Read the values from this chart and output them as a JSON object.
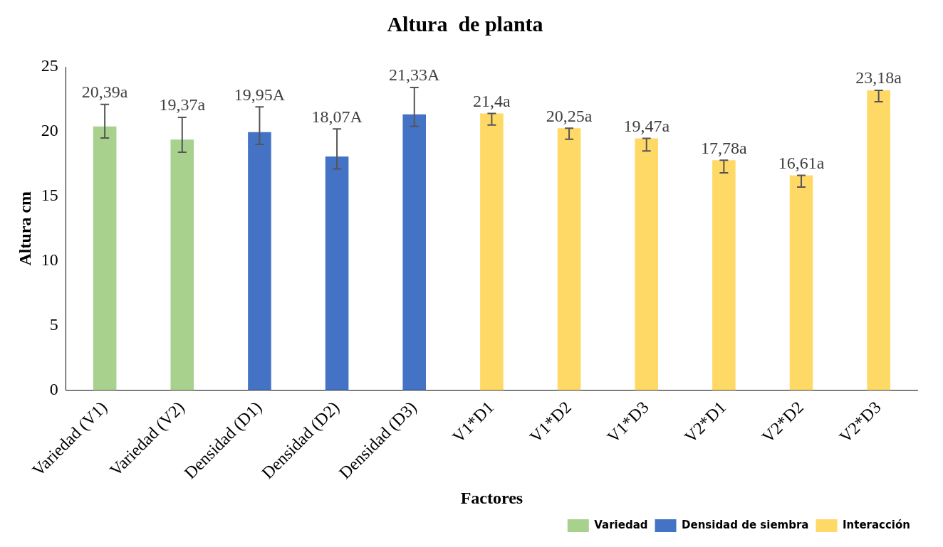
{
  "chart_data": {
    "type": "bar",
    "title": "Altura  de planta",
    "xlabel": "Factores",
    "ylabel": "Altura cm",
    "categories": [
      "Variedad (V1)",
      "Variedad (V2)",
      "Densidad (D1)",
      "Densidad (D2)",
      "Densidad (D3)",
      "V1*D1",
      "V1*D2",
      "V1*D3",
      "V2*D1",
      "V2*D2",
      "V2*D3"
    ],
    "series": [
      {
        "name": "Variedad",
        "color": "#a9d18e",
        "values": [
          20.39,
          19.37,
          null,
          null,
          null,
          null,
          null,
          null,
          null,
          null,
          null
        ],
        "errors": [
          [
            19.5,
            22.1
          ],
          [
            18.4,
            21.1
          ],
          null,
          null,
          null,
          null,
          null,
          null,
          null,
          null,
          null
        ],
        "value_labels": [
          "20,39a",
          "19,37a",
          null,
          null,
          null,
          null,
          null,
          null,
          null,
          null,
          null
        ]
      },
      {
        "name": "Densidad de siembra",
        "color": "#4472c4",
        "values": [
          null,
          null,
          19.95,
          18.07,
          21.33,
          null,
          null,
          null,
          null,
          null,
          null
        ],
        "errors": [
          null,
          null,
          [
            19.0,
            21.9
          ],
          [
            17.1,
            20.2
          ],
          [
            20.4,
            23.4
          ],
          null,
          null,
          null,
          null,
          null,
          null
        ],
        "value_labels": [
          null,
          null,
          "19,95A",
          "18,07A",
          "21,33A",
          null,
          null,
          null,
          null,
          null,
          null
        ]
      },
      {
        "name": "Interacción",
        "color": "#ffd966",
        "values": [
          null,
          null,
          null,
          null,
          null,
          21.4,
          20.25,
          19.47,
          17.78,
          16.61,
          23.18
        ],
        "errors": [
          null,
          null,
          null,
          null,
          null,
          [
            20.5,
            21.4
          ],
          [
            19.4,
            20.25
          ],
          [
            18.5,
            19.47
          ],
          [
            16.8,
            17.78
          ],
          [
            15.7,
            16.61
          ],
          [
            22.3,
            23.18
          ]
        ],
        "value_labels": [
          null,
          null,
          null,
          null,
          null,
          "21,4a",
          "20,25a",
          "19,47a",
          "17,78a",
          "16,61a",
          "23,18a"
        ]
      }
    ],
    "ylim": [
      0,
      25
    ],
    "yticks": [
      0,
      5,
      10,
      15,
      20,
      25
    ],
    "grid": false,
    "legend": "bottom right"
  }
}
